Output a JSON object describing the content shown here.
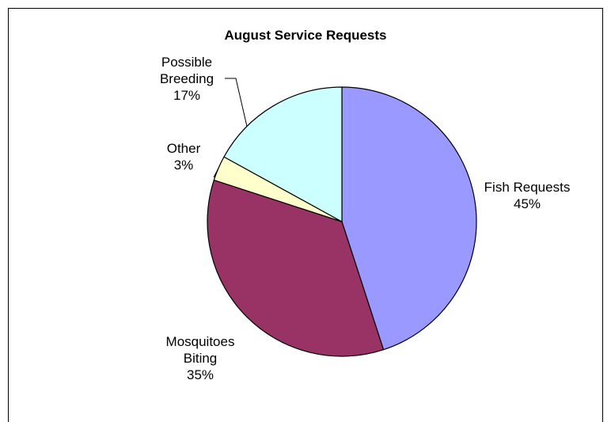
{
  "chart_data": {
    "type": "pie",
    "title": "August Service Requests",
    "slices": [
      {
        "label": [
          "Fish Requests",
          "45%"
        ],
        "value": 45,
        "color": "#9999FF"
      },
      {
        "label": [
          "Mosquitoes",
          "Biting",
          "35%"
        ],
        "value": 35,
        "color": "#993366"
      },
      {
        "label": [
          "Other",
          "3%"
        ],
        "value": 3,
        "color": "#FFFFCC"
      },
      {
        "label": [
          "Possible",
          "Breeding",
          "17%"
        ],
        "value": 17,
        "color": "#CCFFFF"
      }
    ],
    "start_angle_deg": 0,
    "direction": "clockwise",
    "legend": "none"
  }
}
